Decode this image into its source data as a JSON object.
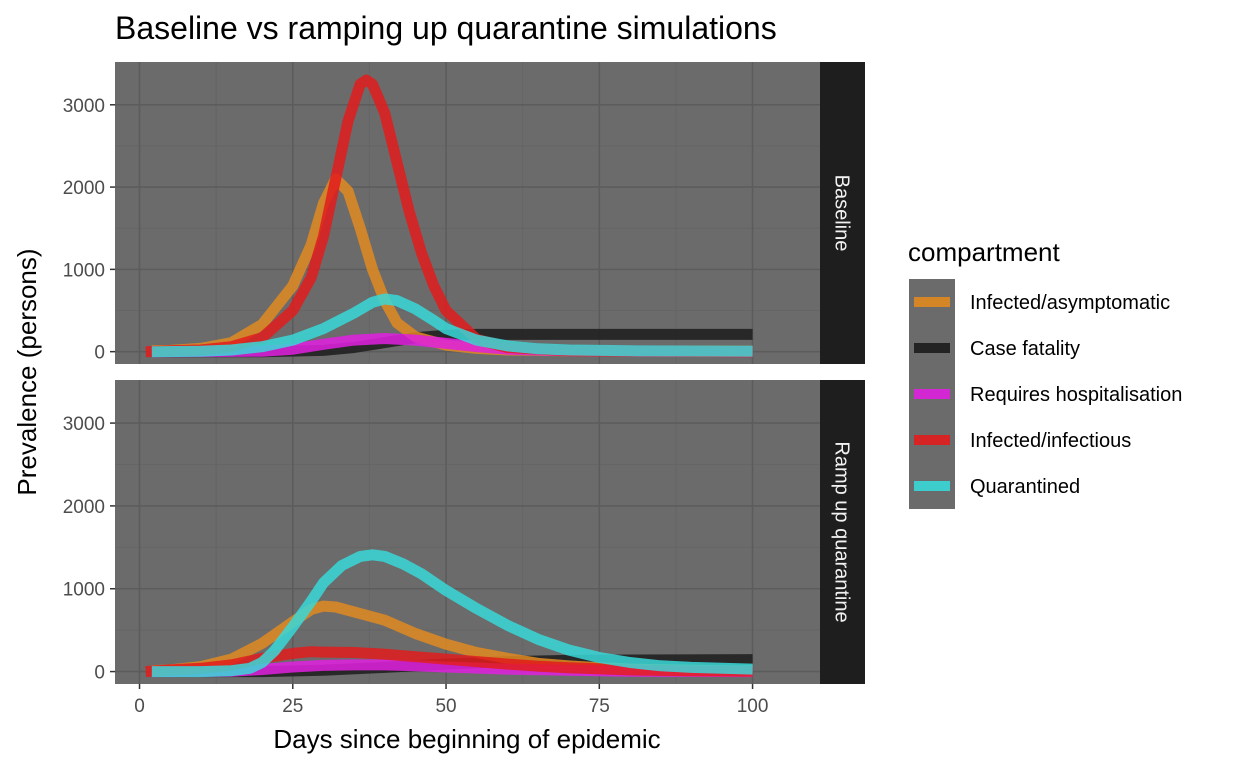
{
  "chart_data": {
    "type": "line",
    "title": "Baseline vs ramping up quarantine simulations",
    "xlabel": "Days since beginning of epidemic",
    "ylabel": "Prevalence (persons)",
    "xlim": [
      -4,
      111
    ],
    "ylim": [
      -150,
      3520
    ],
    "x_ticks": [
      0,
      25,
      50,
      75,
      100
    ],
    "y_ticks": [
      0,
      1000,
      2000,
      3000
    ],
    "grid": true,
    "legend": {
      "title": "compartment",
      "position": "right"
    },
    "colors": {
      "Infected/asymptomatic": "#e08a20",
      "Case fatality": "#1c1c1c",
      "Requires hospitalisation": "#e020e0",
      "Infected/infectious": "#e21c1c",
      "Quarantined": "#38d8d8"
    },
    "facets": [
      {
        "label": "Baseline",
        "series": [
          {
            "name": "Case fatality",
            "points": [
              [
                2,
                0
              ],
              [
                20,
                0
              ],
              [
                30,
                15
              ],
              [
                35,
                50
              ],
              [
                40,
                110
              ],
              [
                45,
                170
              ],
              [
                50,
                200
              ],
              [
                55,
                210
              ],
              [
                60,
                210
              ],
              [
                100,
                210
              ]
            ]
          },
          {
            "name": "Infected/asymptomatic",
            "points": [
              [
                2,
                10
              ],
              [
                5,
                15
              ],
              [
                10,
                40
              ],
              [
                15,
                110
              ],
              [
                20,
                330
              ],
              [
                25,
                800
              ],
              [
                28,
                1300
              ],
              [
                30,
                1800
              ],
              [
                32,
                2100
              ],
              [
                34,
                1950
              ],
              [
                36,
                1500
              ],
              [
                38,
                1000
              ],
              [
                40,
                620
              ],
              [
                42,
                350
              ],
              [
                45,
                180
              ],
              [
                50,
                80
              ],
              [
                55,
                40
              ],
              [
                60,
                20
              ],
              [
                70,
                10
              ],
              [
                100,
                5
              ]
            ]
          },
          {
            "name": "Requires hospitalisation",
            "points": [
              [
                2,
                0
              ],
              [
                20,
                5
              ],
              [
                25,
                30
              ],
              [
                30,
                90
              ],
              [
                35,
                140
              ],
              [
                40,
                160
              ],
              [
                45,
                140
              ],
              [
                50,
                100
              ],
              [
                55,
                60
              ],
              [
                60,
                30
              ],
              [
                70,
                10
              ],
              [
                100,
                0
              ]
            ]
          },
          {
            "name": "Infected/infectious",
            "points": [
              [
                1,
                0
              ],
              [
                5,
                10
              ],
              [
                10,
                20
              ],
              [
                15,
                60
              ],
              [
                20,
                170
              ],
              [
                25,
                500
              ],
              [
                28,
                900
              ],
              [
                30,
                1400
              ],
              [
                32,
                2100
              ],
              [
                34,
                2800
              ],
              [
                36,
                3250
              ],
              [
                37,
                3300
              ],
              [
                38,
                3250
              ],
              [
                40,
                2900
              ],
              [
                42,
                2300
              ],
              [
                44,
                1700
              ],
              [
                46,
                1200
              ],
              [
                48,
                800
              ],
              [
                50,
                500
              ],
              [
                55,
                150
              ],
              [
                60,
                50
              ],
              [
                70,
                10
              ],
              [
                100,
                0
              ]
            ]
          },
          {
            "name": "Quarantined",
            "points": [
              [
                2,
                0
              ],
              [
                10,
                5
              ],
              [
                15,
                20
              ],
              [
                20,
                60
              ],
              [
                25,
                140
              ],
              [
                30,
                280
              ],
              [
                35,
                470
              ],
              [
                38,
                600
              ],
              [
                40,
                640
              ],
              [
                42,
                620
              ],
              [
                45,
                520
              ],
              [
                48,
                380
              ],
              [
                50,
                280
              ],
              [
                55,
                140
              ],
              [
                60,
                70
              ],
              [
                65,
                35
              ],
              [
                70,
                20
              ],
              [
                80,
                10
              ],
              [
                100,
                5
              ]
            ]
          }
        ]
      },
      {
        "label": "Ramp up quarantine",
        "series": [
          {
            "name": "Case fatality",
            "points": [
              [
                2,
                0
              ],
              [
                20,
                0
              ],
              [
                30,
                15
              ],
              [
                40,
                50
              ],
              [
                50,
                90
              ],
              [
                60,
                120
              ],
              [
                70,
                135
              ],
              [
                80,
                140
              ],
              [
                100,
                145
              ]
            ]
          },
          {
            "name": "Infected/asymptomatic",
            "points": [
              [
                2,
                10
              ],
              [
                5,
                20
              ],
              [
                10,
                60
              ],
              [
                15,
                150
              ],
              [
                20,
                340
              ],
              [
                25,
                600
              ],
              [
                28,
                750
              ],
              [
                30,
                790
              ],
              [
                32,
                780
              ],
              [
                35,
                720
              ],
              [
                40,
                620
              ],
              [
                45,
                460
              ],
              [
                50,
                330
              ],
              [
                55,
                230
              ],
              [
                60,
                160
              ],
              [
                65,
                100
              ],
              [
                70,
                70
              ],
              [
                75,
                45
              ],
              [
                80,
                30
              ],
              [
                90,
                15
              ],
              [
                100,
                5
              ]
            ]
          },
          {
            "name": "Requires hospitalisation",
            "points": [
              [
                2,
                0
              ],
              [
                15,
                5
              ],
              [
                20,
                25
              ],
              [
                25,
                55
              ],
              [
                30,
                75
              ],
              [
                35,
                80
              ],
              [
                40,
                80
              ],
              [
                45,
                70
              ],
              [
                50,
                55
              ],
              [
                60,
                30
              ],
              [
                70,
                15
              ],
              [
                80,
                5
              ],
              [
                100,
                0
              ]
            ]
          },
          {
            "name": "Infected/infectious",
            "points": [
              [
                1,
                0
              ],
              [
                5,
                20
              ],
              [
                10,
                40
              ],
              [
                15,
                80
              ],
              [
                20,
                160
              ],
              [
                25,
                220
              ],
              [
                28,
                240
              ],
              [
                30,
                235
              ],
              [
                35,
                230
              ],
              [
                40,
                210
              ],
              [
                45,
                180
              ],
              [
                50,
                150
              ],
              [
                55,
                120
              ],
              [
                60,
                90
              ],
              [
                65,
                65
              ],
              [
                70,
                45
              ],
              [
                80,
                20
              ],
              [
                90,
                10
              ],
              [
                100,
                5
              ]
            ]
          },
          {
            "name": "Quarantined",
            "points": [
              [
                2,
                0
              ],
              [
                10,
                0
              ],
              [
                15,
                10
              ],
              [
                18,
                40
              ],
              [
                20,
                110
              ],
              [
                22,
                250
              ],
              [
                25,
                540
              ],
              [
                28,
                850
              ],
              [
                30,
                1070
              ],
              [
                33,
                1280
              ],
              [
                36,
                1390
              ],
              [
                38,
                1410
              ],
              [
                40,
                1390
              ],
              [
                43,
                1300
              ],
              [
                46,
                1180
              ],
              [
                50,
                980
              ],
              [
                55,
                760
              ],
              [
                60,
                560
              ],
              [
                65,
                390
              ],
              [
                70,
                260
              ],
              [
                75,
                170
              ],
              [
                80,
                110
              ],
              [
                85,
                70
              ],
              [
                90,
                50
              ],
              [
                100,
                30
              ]
            ]
          }
        ]
      }
    ]
  }
}
